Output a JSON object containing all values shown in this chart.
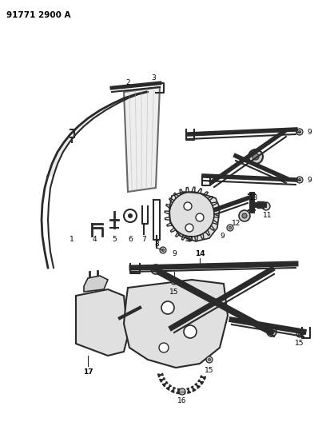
{
  "title": "91771 2900 A",
  "bg": "#ffffff",
  "lc": "#2a2a2a",
  "tc": "#000000",
  "figsize": [
    4.03,
    5.33
  ],
  "dpi": 100
}
